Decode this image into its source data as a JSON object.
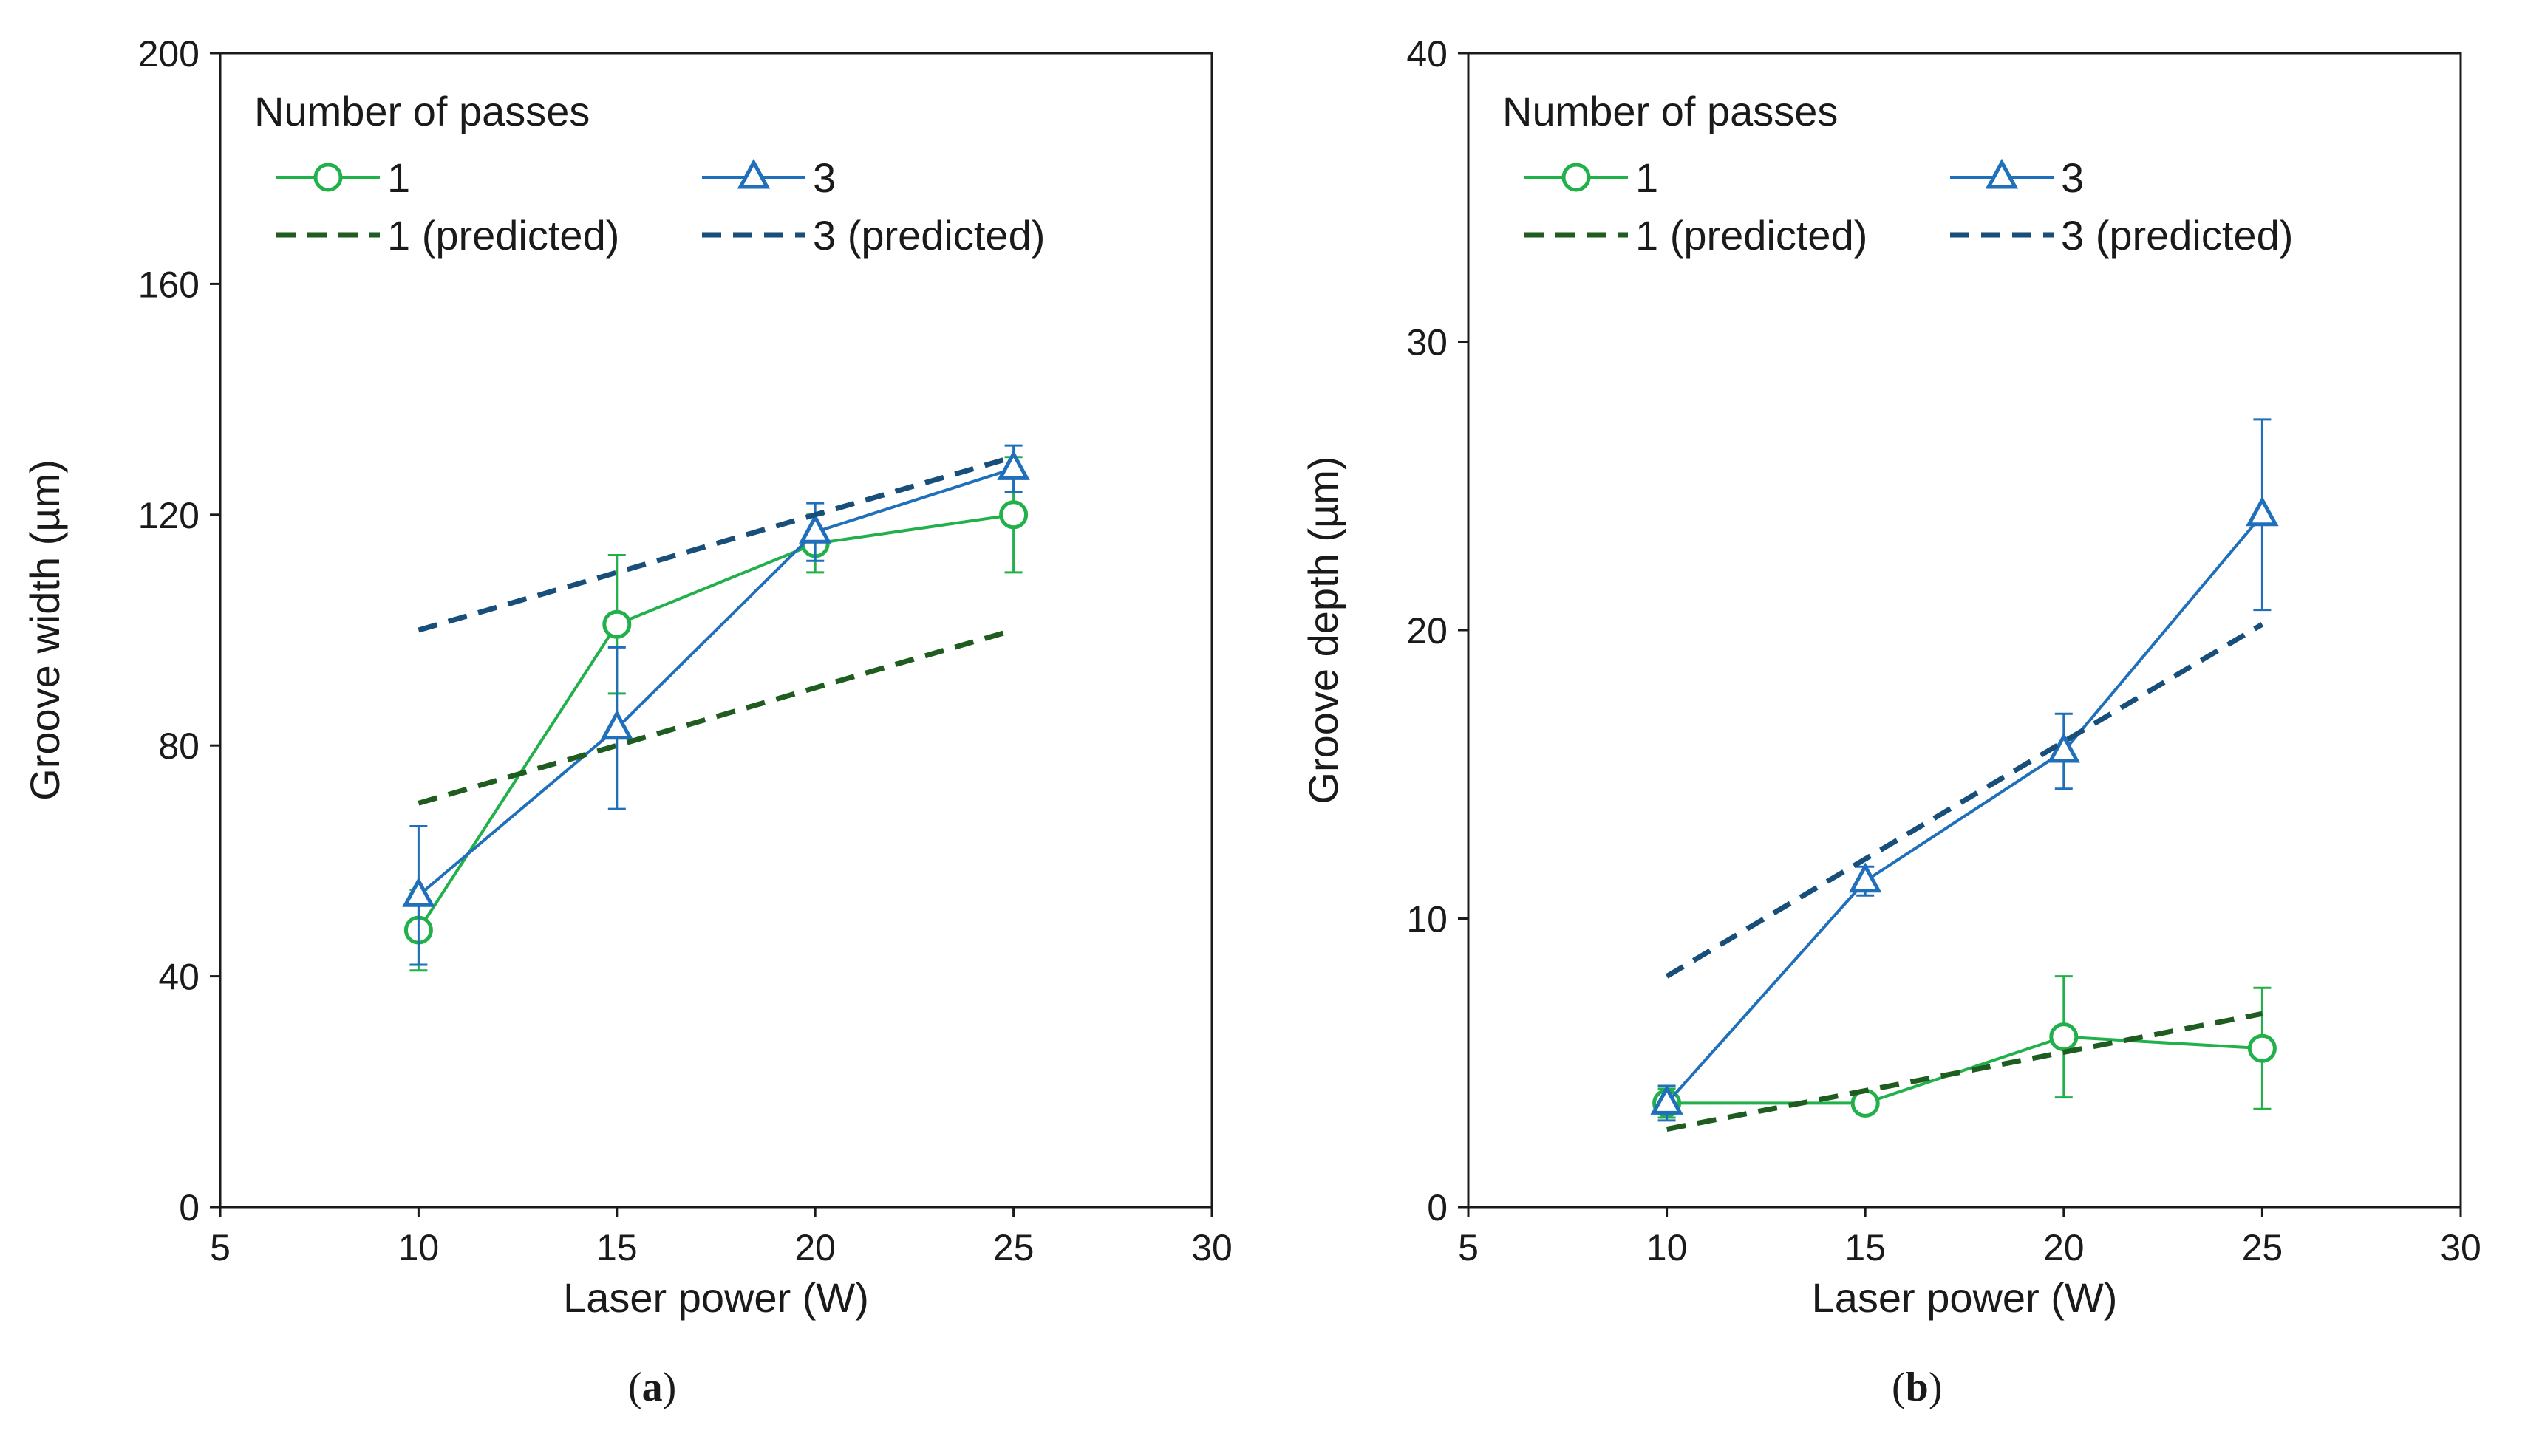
{
  "chart_data": [
    {
      "type": "line",
      "panel_label": "(a)",
      "panel_letter": "a",
      "xlabel": "Laser power (W)",
      "ylabel": "Groove width (µm)",
      "xlim": [
        5,
        30
      ],
      "ylim": [
        0,
        200
      ],
      "xticks": [
        5,
        10,
        15,
        20,
        25,
        30
      ],
      "yticks": [
        0,
        40,
        80,
        120,
        160,
        200
      ],
      "grid": false,
      "legend": {
        "title": "Number of passes",
        "placement": "top-left",
        "entries": [
          "1",
          "3",
          "1 (predicted)",
          "3 (predicted)"
        ]
      },
      "series": [
        {
          "name": "1",
          "color": "#22b04b",
          "marker": "circle",
          "style": "solid",
          "x": [
            10,
            15,
            20,
            25
          ],
          "y": [
            48,
            101,
            115,
            120
          ],
          "err": [
            7,
            12,
            5,
            10
          ]
        },
        {
          "name": "3",
          "color": "#1f6fba",
          "marker": "triangle",
          "style": "solid",
          "x": [
            10,
            15,
            20,
            25
          ],
          "y": [
            54,
            83,
            117,
            128
          ],
          "err": [
            12,
            14,
            5,
            4
          ]
        },
        {
          "name": "1 (predicted)",
          "color": "#1f5c1f",
          "marker": "none",
          "style": "dashed",
          "x": [
            10,
            25
          ],
          "y": [
            70,
            100
          ]
        },
        {
          "name": "3 (predicted)",
          "color": "#174e7a",
          "marker": "none",
          "style": "dashed",
          "x": [
            10,
            25
          ],
          "y": [
            100,
            130
          ]
        }
      ]
    },
    {
      "type": "line",
      "panel_label": "(b)",
      "panel_letter": "b",
      "xlabel": "Laser power (W)",
      "ylabel": "Groove depth (µm)",
      "xlim": [
        5,
        30
      ],
      "ylim": [
        0,
        40
      ],
      "xticks": [
        5,
        10,
        15,
        20,
        25,
        30
      ],
      "yticks": [
        0,
        10,
        20,
        30,
        40
      ],
      "grid": false,
      "legend": {
        "title": "Number of passes",
        "placement": "top-left",
        "entries": [
          "1",
          "3",
          "1 (predicted)",
          "3 (predicted)"
        ]
      },
      "series": [
        {
          "name": "1",
          "color": "#22b04b",
          "marker": "circle",
          "style": "solid",
          "x": [
            10,
            15,
            20,
            25
          ],
          "y": [
            3.6,
            3.6,
            5.9,
            5.5
          ],
          "err": [
            0.5,
            0.3,
            2.1,
            2.1
          ]
        },
        {
          "name": "3",
          "color": "#1f6fba",
          "marker": "triangle",
          "style": "solid",
          "x": [
            10,
            15,
            20,
            25
          ],
          "y": [
            3.6,
            11.3,
            15.8,
            24
          ],
          "err": [
            0.6,
            0.5,
            1.3,
            3.3
          ]
        },
        {
          "name": "1 (predicted)",
          "color": "#1f5c1f",
          "marker": "none",
          "style": "dashed",
          "x": [
            10,
            25
          ],
          "y": [
            2.7,
            6.7
          ]
        },
        {
          "name": "3 (predicted)",
          "color": "#174e7a",
          "marker": "none",
          "style": "dashed",
          "x": [
            10,
            25
          ],
          "y": [
            8,
            20.2
          ]
        }
      ]
    }
  ]
}
